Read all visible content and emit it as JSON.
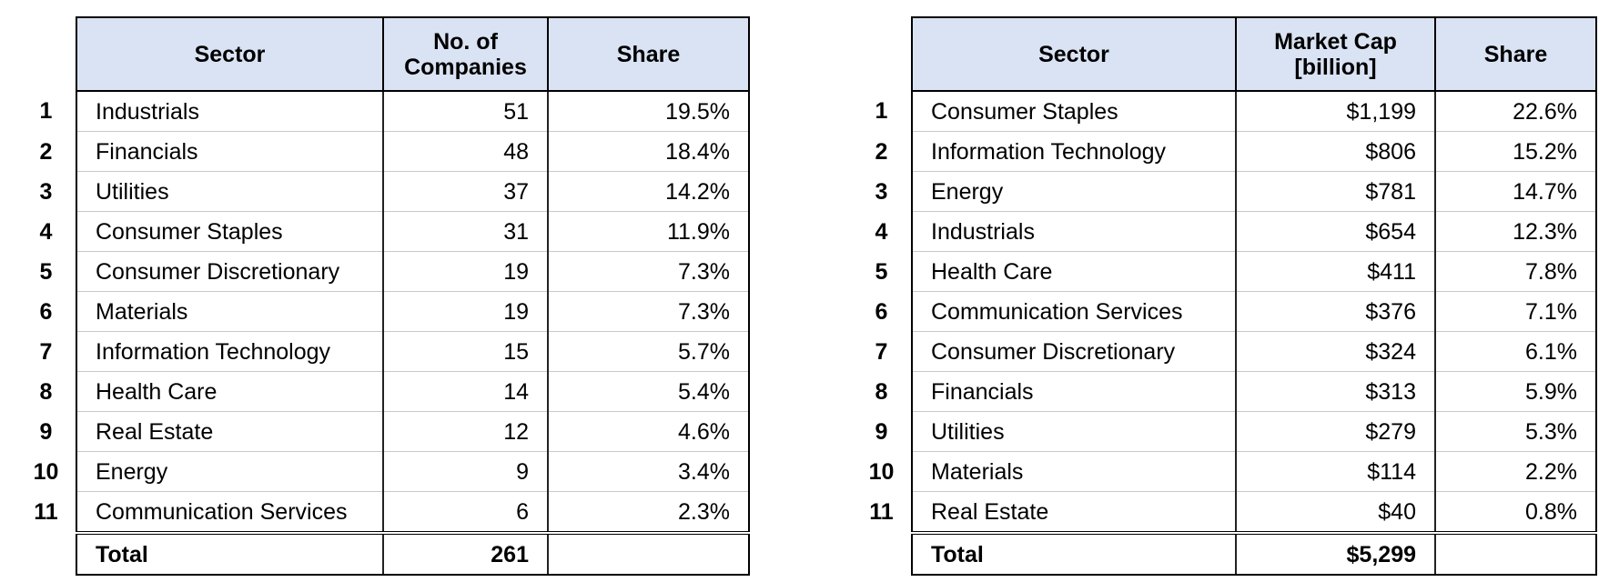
{
  "tables": [
    {
      "header": {
        "sector": "Sector",
        "measure": "No. of Companies",
        "share": "Share"
      },
      "rows": [
        {
          "rank": "1",
          "sector": "Industrials",
          "measure": "51",
          "share": "19.5%"
        },
        {
          "rank": "2",
          "sector": "Financials",
          "measure": "48",
          "share": "18.4%"
        },
        {
          "rank": "3",
          "sector": "Utilities",
          "measure": "37",
          "share": "14.2%"
        },
        {
          "rank": "4",
          "sector": "Consumer Staples",
          "measure": "31",
          "share": "11.9%"
        },
        {
          "rank": "5",
          "sector": "Consumer Discretionary",
          "measure": "19",
          "share": "7.3%"
        },
        {
          "rank": "6",
          "sector": "Materials",
          "measure": "19",
          "share": "7.3%"
        },
        {
          "rank": "7",
          "sector": "Information Technology",
          "measure": "15",
          "share": "5.7%"
        },
        {
          "rank": "8",
          "sector": "Health Care",
          "measure": "14",
          "share": "5.4%"
        },
        {
          "rank": "9",
          "sector": "Real Estate",
          "measure": "12",
          "share": "4.6%"
        },
        {
          "rank": "10",
          "sector": "Energy",
          "measure": "9",
          "share": "3.4%"
        },
        {
          "rank": "11",
          "sector": "Communication Services",
          "measure": "6",
          "share": "2.3%"
        }
      ],
      "total": {
        "sector": "Total",
        "measure": "261"
      }
    },
    {
      "header": {
        "sector": "Sector",
        "measure": "Market Cap [billion]",
        "share": "Share"
      },
      "rows": [
        {
          "rank": "1",
          "sector": "Consumer Staples",
          "measure": "$1,199",
          "share": "22.6%"
        },
        {
          "rank": "2",
          "sector": "Information Technology",
          "measure": "$806",
          "share": "15.2%"
        },
        {
          "rank": "3",
          "sector": "Energy",
          "measure": "$781",
          "share": "14.7%"
        },
        {
          "rank": "4",
          "sector": "Industrials",
          "measure": "$654",
          "share": "12.3%"
        },
        {
          "rank": "5",
          "sector": "Health Care",
          "measure": "$411",
          "share": "7.8%"
        },
        {
          "rank": "6",
          "sector": "Communication Services",
          "measure": "$376",
          "share": "7.1%"
        },
        {
          "rank": "7",
          "sector": "Consumer Discretionary",
          "measure": "$324",
          "share": "6.1%"
        },
        {
          "rank": "8",
          "sector": "Financials",
          "measure": "$313",
          "share": "5.9%"
        },
        {
          "rank": "9",
          "sector": "Utilities",
          "measure": "$279",
          "share": "5.3%"
        },
        {
          "rank": "10",
          "sector": "Materials",
          "measure": "$114",
          "share": "2.2%"
        },
        {
          "rank": "11",
          "sector": "Real Estate",
          "measure": "$40",
          "share": "0.8%"
        }
      ],
      "total": {
        "sector": "Total",
        "measure": "$5,299"
      }
    }
  ]
}
